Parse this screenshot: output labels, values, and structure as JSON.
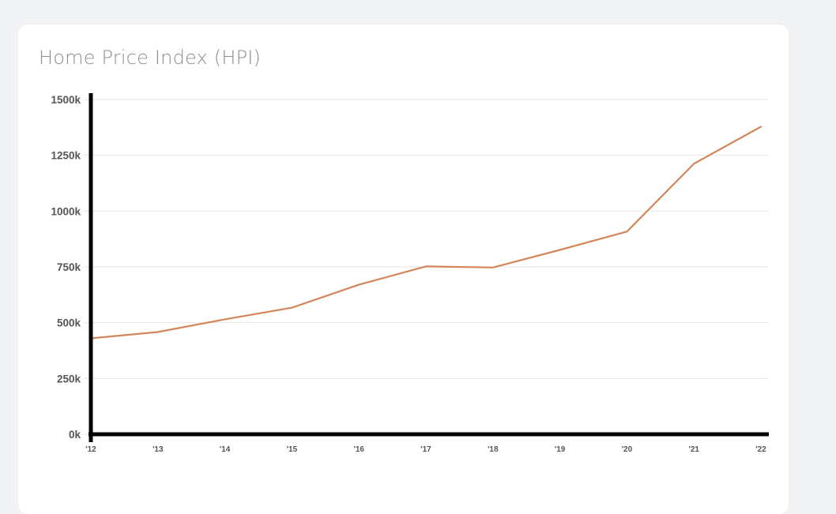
{
  "card": {
    "title": "Home Price Index (HPI)"
  },
  "chart_data": {
    "type": "line",
    "title": "Home Price Index (HPI)",
    "x": [
      "'12",
      "'13",
      "'14",
      "'15",
      "'16",
      "'17",
      "'18",
      "'19",
      "'20",
      "'21",
      "'22"
    ],
    "series": [
      {
        "values": [
          430000,
          458000,
          515000,
          567000,
          670000,
          752000,
          747000,
          826000,
          908000,
          1212000,
          1378000
        ]
      }
    ],
    "y_ticks": [
      0,
      250000,
      500000,
      750000,
      1000000,
      1250000,
      1500000
    ],
    "y_tick_labels": [
      "0k",
      "250k",
      "500k",
      "750k",
      "1000k",
      "1250k",
      "1500k"
    ],
    "ylim": [
      0,
      1500000
    ],
    "grid": true,
    "colors": {
      "line": "#d4855a",
      "axis": "#000000",
      "grid": "#e6e6e6"
    }
  }
}
